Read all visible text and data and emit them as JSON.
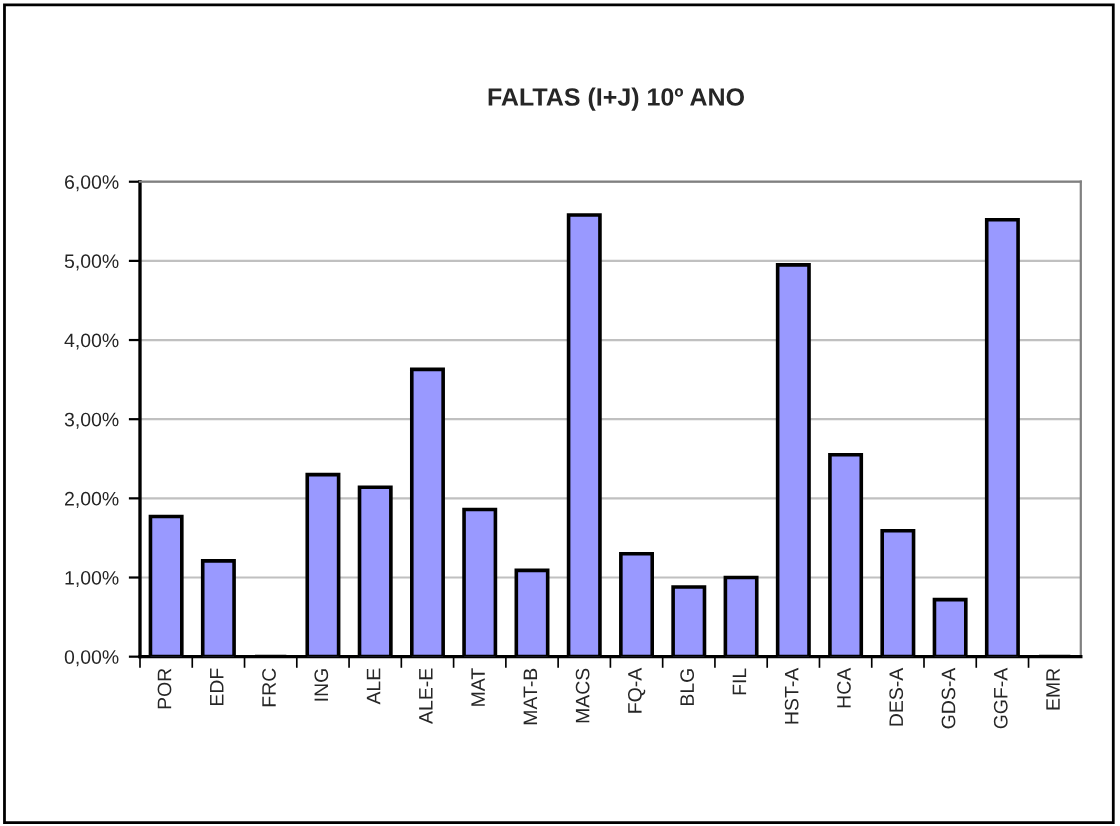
{
  "chart_data": {
    "type": "bar",
    "title": "FALTAS (I+J) 10º ANO",
    "categories": [
      "POR",
      "EDF",
      "FRC",
      "ING",
      "ALE",
      "ALE-E",
      "MAT",
      "MAT-B",
      "MACS",
      "FQ-A",
      "BLG",
      "FIL",
      "HST-A",
      "HCA",
      "DES-A",
      "GDS-A",
      "GGF-A",
      "EMR"
    ],
    "values": [
      1.77,
      1.21,
      0,
      2.3,
      2.14,
      3.63,
      1.86,
      1.09,
      5.58,
      1.3,
      0.88,
      1.0,
      4.95,
      2.55,
      1.59,
      0.72,
      5.52,
      0
    ],
    "color": "#9999ff",
    "ylim": [
      0,
      6
    ],
    "yticks": [
      {
        "value": 0,
        "label": "0,00%"
      },
      {
        "value": 1,
        "label": "1,00%"
      },
      {
        "value": 2,
        "label": "2,00%"
      },
      {
        "value": 3,
        "label": "3,00%"
      },
      {
        "value": 4,
        "label": "4,00%"
      },
      {
        "value": 5,
        "label": "5,00%"
      },
      {
        "value": 6,
        "label": "6,00%"
      }
    ],
    "grid": "y",
    "legend": false
  }
}
